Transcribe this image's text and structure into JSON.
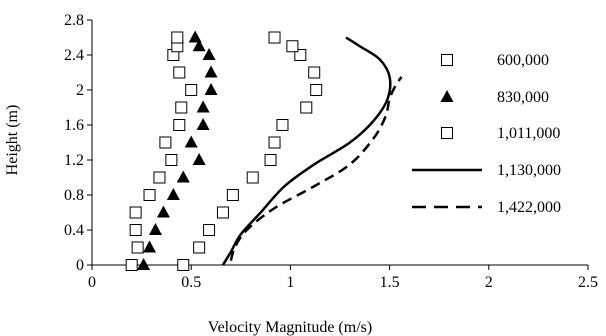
{
  "chart_data": {
    "type": "scatter",
    "title": "",
    "xlabel": "Velocity Magnitude (m/s)",
    "ylabel": "Height (m)",
    "xlim": [
      0,
      2.5
    ],
    "ylim": [
      0,
      2.8
    ],
    "x_ticks": [
      "0",
      "0.5",
      "1",
      "1.5",
      "2",
      "2.5"
    ],
    "y_ticks": [
      "0",
      "0.4",
      "0.8",
      "1.2",
      "1.6",
      "2",
      "2.4",
      "2.8"
    ],
    "x_tick_values": [
      0,
      0.5,
      1,
      1.5,
      2,
      2.5
    ],
    "y_tick_values": [
      0,
      0.4,
      0.8,
      1.2,
      1.6,
      2,
      2.4,
      2.8
    ],
    "grid": false,
    "legend_position": "right",
    "series": [
      {
        "name": "600,000",
        "marker": "open-square",
        "points": [
          [
            0.2,
            0.0
          ],
          [
            0.23,
            0.2
          ],
          [
            0.22,
            0.4
          ],
          [
            0.22,
            0.6
          ],
          [
            0.29,
            0.8
          ],
          [
            0.34,
            1.0
          ],
          [
            0.4,
            1.2
          ],
          [
            0.37,
            1.4
          ],
          [
            0.44,
            1.6
          ],
          [
            0.45,
            1.8
          ],
          [
            0.5,
            2.0
          ],
          [
            0.44,
            2.2
          ],
          [
            0.41,
            2.4
          ],
          [
            0.43,
            2.5
          ],
          [
            0.43,
            2.6
          ]
        ]
      },
      {
        "name": "830,000",
        "marker": "filled-triangle",
        "points": [
          [
            0.26,
            0.0
          ],
          [
            0.29,
            0.2
          ],
          [
            0.32,
            0.4
          ],
          [
            0.36,
            0.6
          ],
          [
            0.41,
            0.8
          ],
          [
            0.46,
            1.0
          ],
          [
            0.54,
            1.2
          ],
          [
            0.5,
            1.4
          ],
          [
            0.56,
            1.6
          ],
          [
            0.56,
            1.8
          ],
          [
            0.6,
            2.0
          ],
          [
            0.6,
            2.2
          ],
          [
            0.59,
            2.4
          ],
          [
            0.54,
            2.5
          ],
          [
            0.52,
            2.6
          ]
        ]
      },
      {
        "name": "1,011,000",
        "marker": "open-square",
        "points": [
          [
            0.46,
            0.0
          ],
          [
            0.54,
            0.2
          ],
          [
            0.59,
            0.4
          ],
          [
            0.66,
            0.6
          ],
          [
            0.71,
            0.8
          ],
          [
            0.81,
            1.0
          ],
          [
            0.9,
            1.2
          ],
          [
            0.92,
            1.4
          ],
          [
            0.96,
            1.6
          ],
          [
            1.08,
            1.8
          ],
          [
            1.13,
            2.0
          ],
          [
            1.12,
            2.2
          ],
          [
            1.05,
            2.4
          ],
          [
            1.01,
            2.5
          ],
          [
            0.92,
            2.6
          ]
        ]
      },
      {
        "name": "1,130,000",
        "line": "solid",
        "points": [
          [
            0.66,
            0.0
          ],
          [
            0.7,
            0.15
          ],
          [
            0.75,
            0.35
          ],
          [
            0.85,
            0.6
          ],
          [
            0.97,
            0.9
          ],
          [
            1.12,
            1.15
          ],
          [
            1.3,
            1.4
          ],
          [
            1.42,
            1.65
          ],
          [
            1.49,
            1.9
          ],
          [
            1.5,
            2.15
          ],
          [
            1.45,
            2.35
          ],
          [
            1.35,
            2.5
          ],
          [
            1.28,
            2.6
          ]
        ]
      },
      {
        "name": "1,422,000",
        "line": "dashed",
        "points": [
          [
            0.7,
            0.05
          ],
          [
            0.72,
            0.2
          ],
          [
            0.78,
            0.4
          ],
          [
            0.92,
            0.65
          ],
          [
            1.12,
            0.9
          ],
          [
            1.3,
            1.15
          ],
          [
            1.42,
            1.45
          ],
          [
            1.48,
            1.7
          ],
          [
            1.5,
            1.9
          ],
          [
            1.53,
            2.05
          ],
          [
            1.56,
            2.15
          ]
        ]
      }
    ]
  }
}
